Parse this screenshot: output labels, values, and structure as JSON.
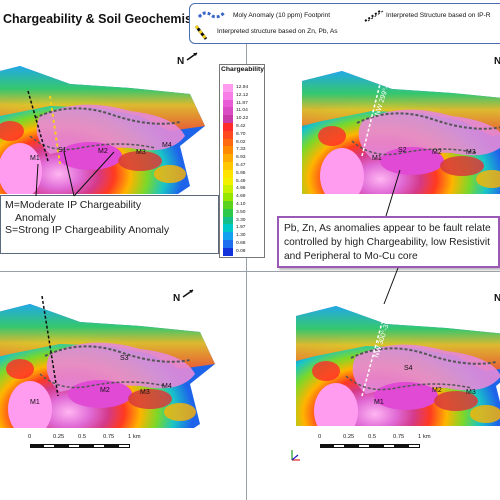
{
  "title": "Chargeability & Soil Geochemistry",
  "legend": {
    "moly": "Moly Anomaly (10 ppm) Footprint",
    "ip_structure": "Interpreted Structure based on IP-R",
    "znpbas_structure": "Interpreted structure based on Zn, Pb, As"
  },
  "colorbar": {
    "title": "Chargeability",
    "labels": [
      "12.94",
      "12.12",
      "11.87",
      "11.04",
      "10.22",
      "9.42",
      "8.70",
      "8.02",
      "7.33",
      "6.93",
      "6.47",
      "5.95",
      "5.49",
      "4.96",
      "4.69",
      "4.10",
      "3.50",
      "3.30",
      "1.97",
      "1.30",
      "0.68",
      "0.08"
    ],
    "colors": [
      "#ff9cf0",
      "#f77ee6",
      "#e85cd8",
      "#d94cc4",
      "#c73aa8",
      "#ff2a2a",
      "#ff4a20",
      "#ff6a10",
      "#ff8a00",
      "#ffaa00",
      "#ffc800",
      "#ffe400",
      "#f2f200",
      "#c8f000",
      "#96e600",
      "#5ad21e",
      "#2ec84a",
      "#14c08a",
      "#00c8c8",
      "#14a0f0",
      "#1e6ef0",
      "#1432dc"
    ]
  },
  "north": "N",
  "callouts": {
    "left": [
      "M=Moderate IP Chargeability",
      "Anomaly",
      "S=Strong IP Chargeability Anomaly"
    ],
    "right": [
      "Pb, Zn, As anomalies appear to be fault relate",
      "controlled by high Chargeability, low Resistivit",
      "and Peripheral to Mo-Cu core"
    ]
  },
  "map_labels": {
    "M1": "M1",
    "M2": "M2",
    "M3": "M3",
    "M4": "M4",
    "S1": "S1",
    "S2": "S2",
    "S3": "S3",
    "S4": "S4"
  },
  "fault_labels": {
    "top": "NW 299°-3",
    "bottom": "NW 300°-3"
  },
  "scale": {
    "ticks": [
      "0",
      "0.25",
      "0.5",
      "0.75",
      "1 km"
    ]
  }
}
